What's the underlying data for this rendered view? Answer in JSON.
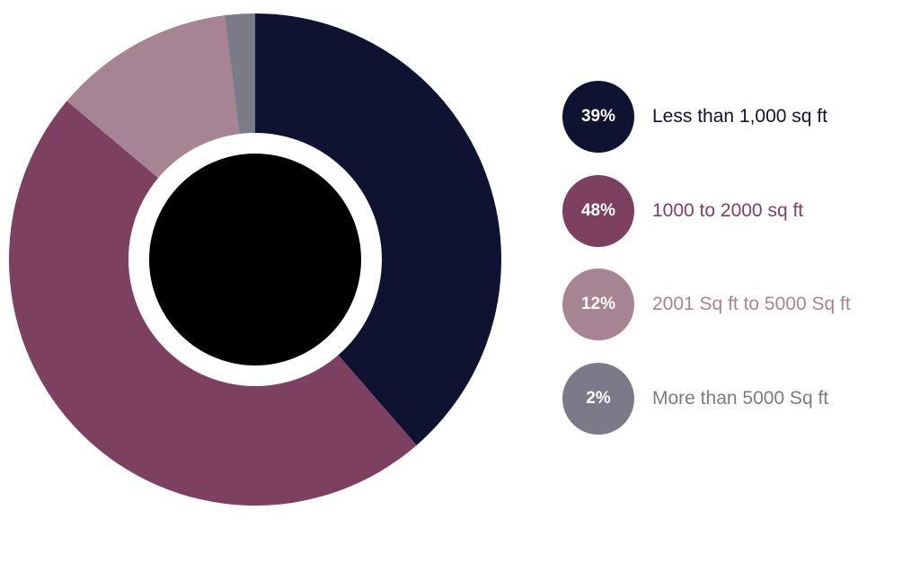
{
  "chart_data": {
    "type": "pie",
    "categories": [
      "Less than 1,000 sq ft",
      "1000 to 2000 sq ft",
      "2001 Sq ft to 5000 Sq ft",
      "More than 5000 Sq ft"
    ],
    "values": [
      39,
      48,
      12,
      2
    ],
    "value_labels": [
      "39%",
      "48%",
      "12%",
      "2%"
    ],
    "colors": [
      "#0f1231",
      "#7d4060",
      "#a78494",
      "#7b7a89"
    ],
    "label_colors": [
      "#0f1231",
      "#7d4060",
      "#a78494",
      "#7b7a89"
    ],
    "center_color": "#000000",
    "legend_placement": "right"
  }
}
